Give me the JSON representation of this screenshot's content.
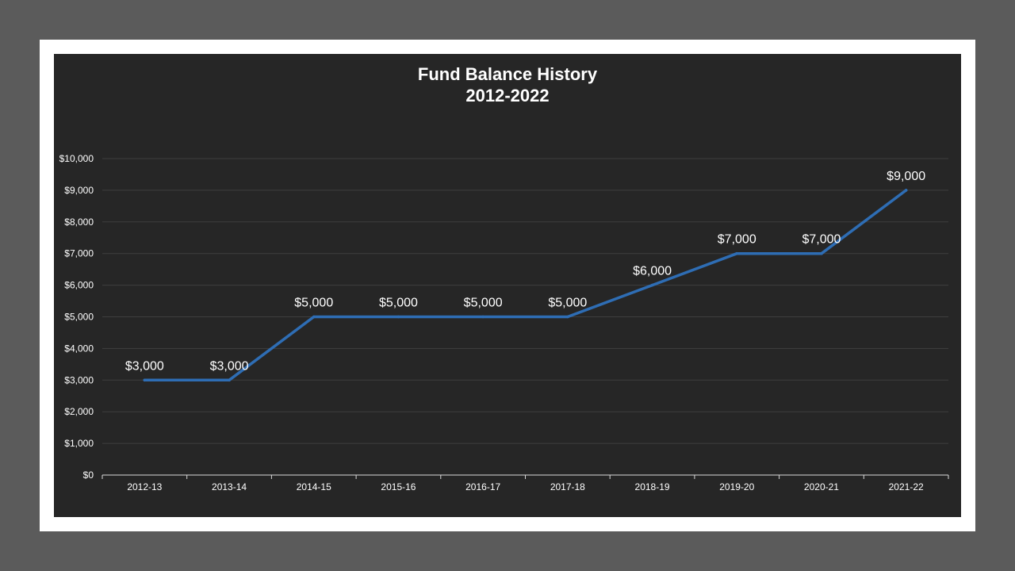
{
  "chart_data": {
    "type": "line",
    "title": "Fund Balance History",
    "subtitle": "2012-2022",
    "categories": [
      "2012-13",
      "2013-14",
      "2014-15",
      "2015-16",
      "2016-17",
      "2017-18",
      "2018-19",
      "2019-20",
      "2020-21",
      "2021-22"
    ],
    "series": [
      {
        "values": [
          3000,
          3000,
          5000,
          5000,
          5000,
          5000,
          6000,
          7000,
          7000,
          9000
        ],
        "data_labels": [
          "$3,000",
          "$3,000",
          "$5,000",
          "$5,000",
          "$5,000",
          "$5,000",
          "$6,000",
          "$7,000",
          "$7,000",
          "$9,000"
        ],
        "color": "#2e6db4"
      }
    ],
    "ylim": [
      0,
      10000
    ],
    "yticks": [
      0,
      1000,
      2000,
      3000,
      4000,
      5000,
      6000,
      7000,
      8000,
      9000,
      10000
    ],
    "ytick_labels": [
      "$0",
      "$1,000",
      "$2,000",
      "$3,000",
      "$4,000",
      "$5,000",
      "$6,000",
      "$7,000",
      "$8,000",
      "$9,000",
      "$10,000"
    ],
    "grid": true,
    "legend": "none",
    "colors": {
      "background": "#262626",
      "frame": "#ffffff",
      "outer": "#5b5b5b",
      "text": "#ffffff",
      "grid": "#3f3f3f"
    }
  }
}
